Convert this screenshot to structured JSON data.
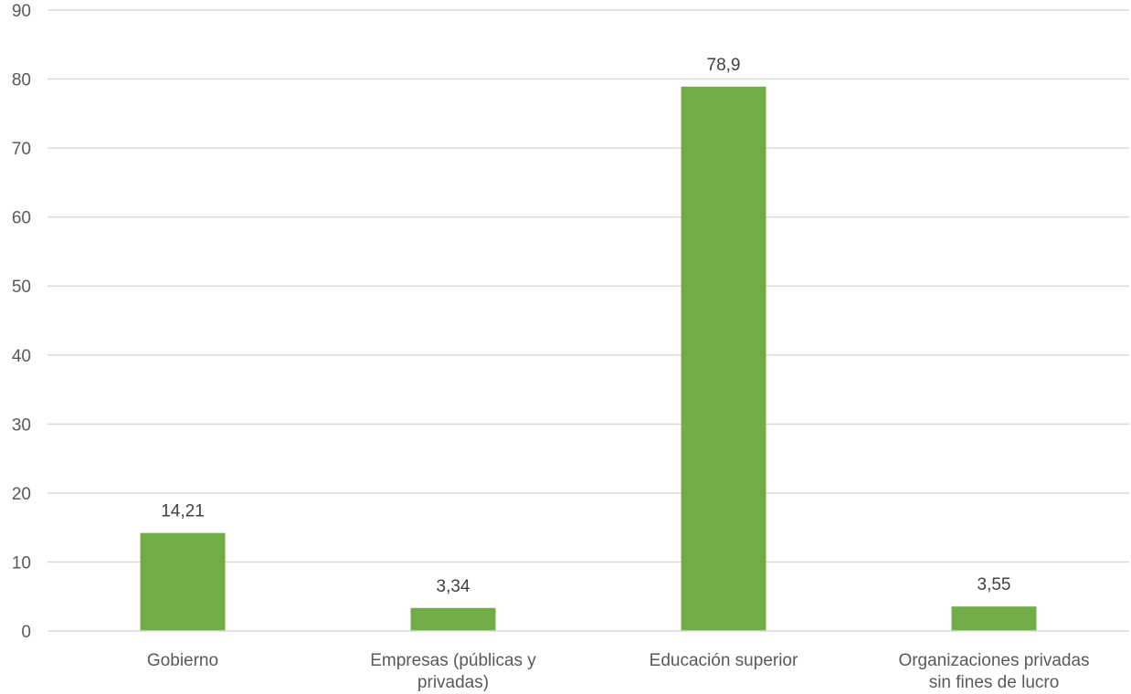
{
  "chart_data": {
    "type": "bar",
    "title": "",
    "xlabel": "",
    "ylabel": "",
    "ylim": [
      0,
      90
    ],
    "yticks": [
      0,
      10,
      20,
      30,
      40,
      50,
      60,
      70,
      80,
      90
    ],
    "grid": true,
    "legend": "none",
    "categories": [
      "Gobierno",
      "Empresas (públicas y privadas)",
      "Educación superior",
      "Organizaciones privadas sin fines de lucro"
    ],
    "category_label_lines": [
      [
        "Gobierno"
      ],
      [
        "Empresas (públicas y",
        "privadas)"
      ],
      [
        "Educación superior"
      ],
      [
        "Organizaciones privadas",
        "sin fines de lucro"
      ]
    ],
    "values": [
      14.21,
      3.34,
      78.9,
      3.55
    ],
    "data_labels": [
      "14,21",
      "3,34",
      "78,9",
      "3,55"
    ],
    "bar_color": "#70AD47",
    "grid_color": "#D9D9D9",
    "axis_color": "#D9D9D9"
  }
}
